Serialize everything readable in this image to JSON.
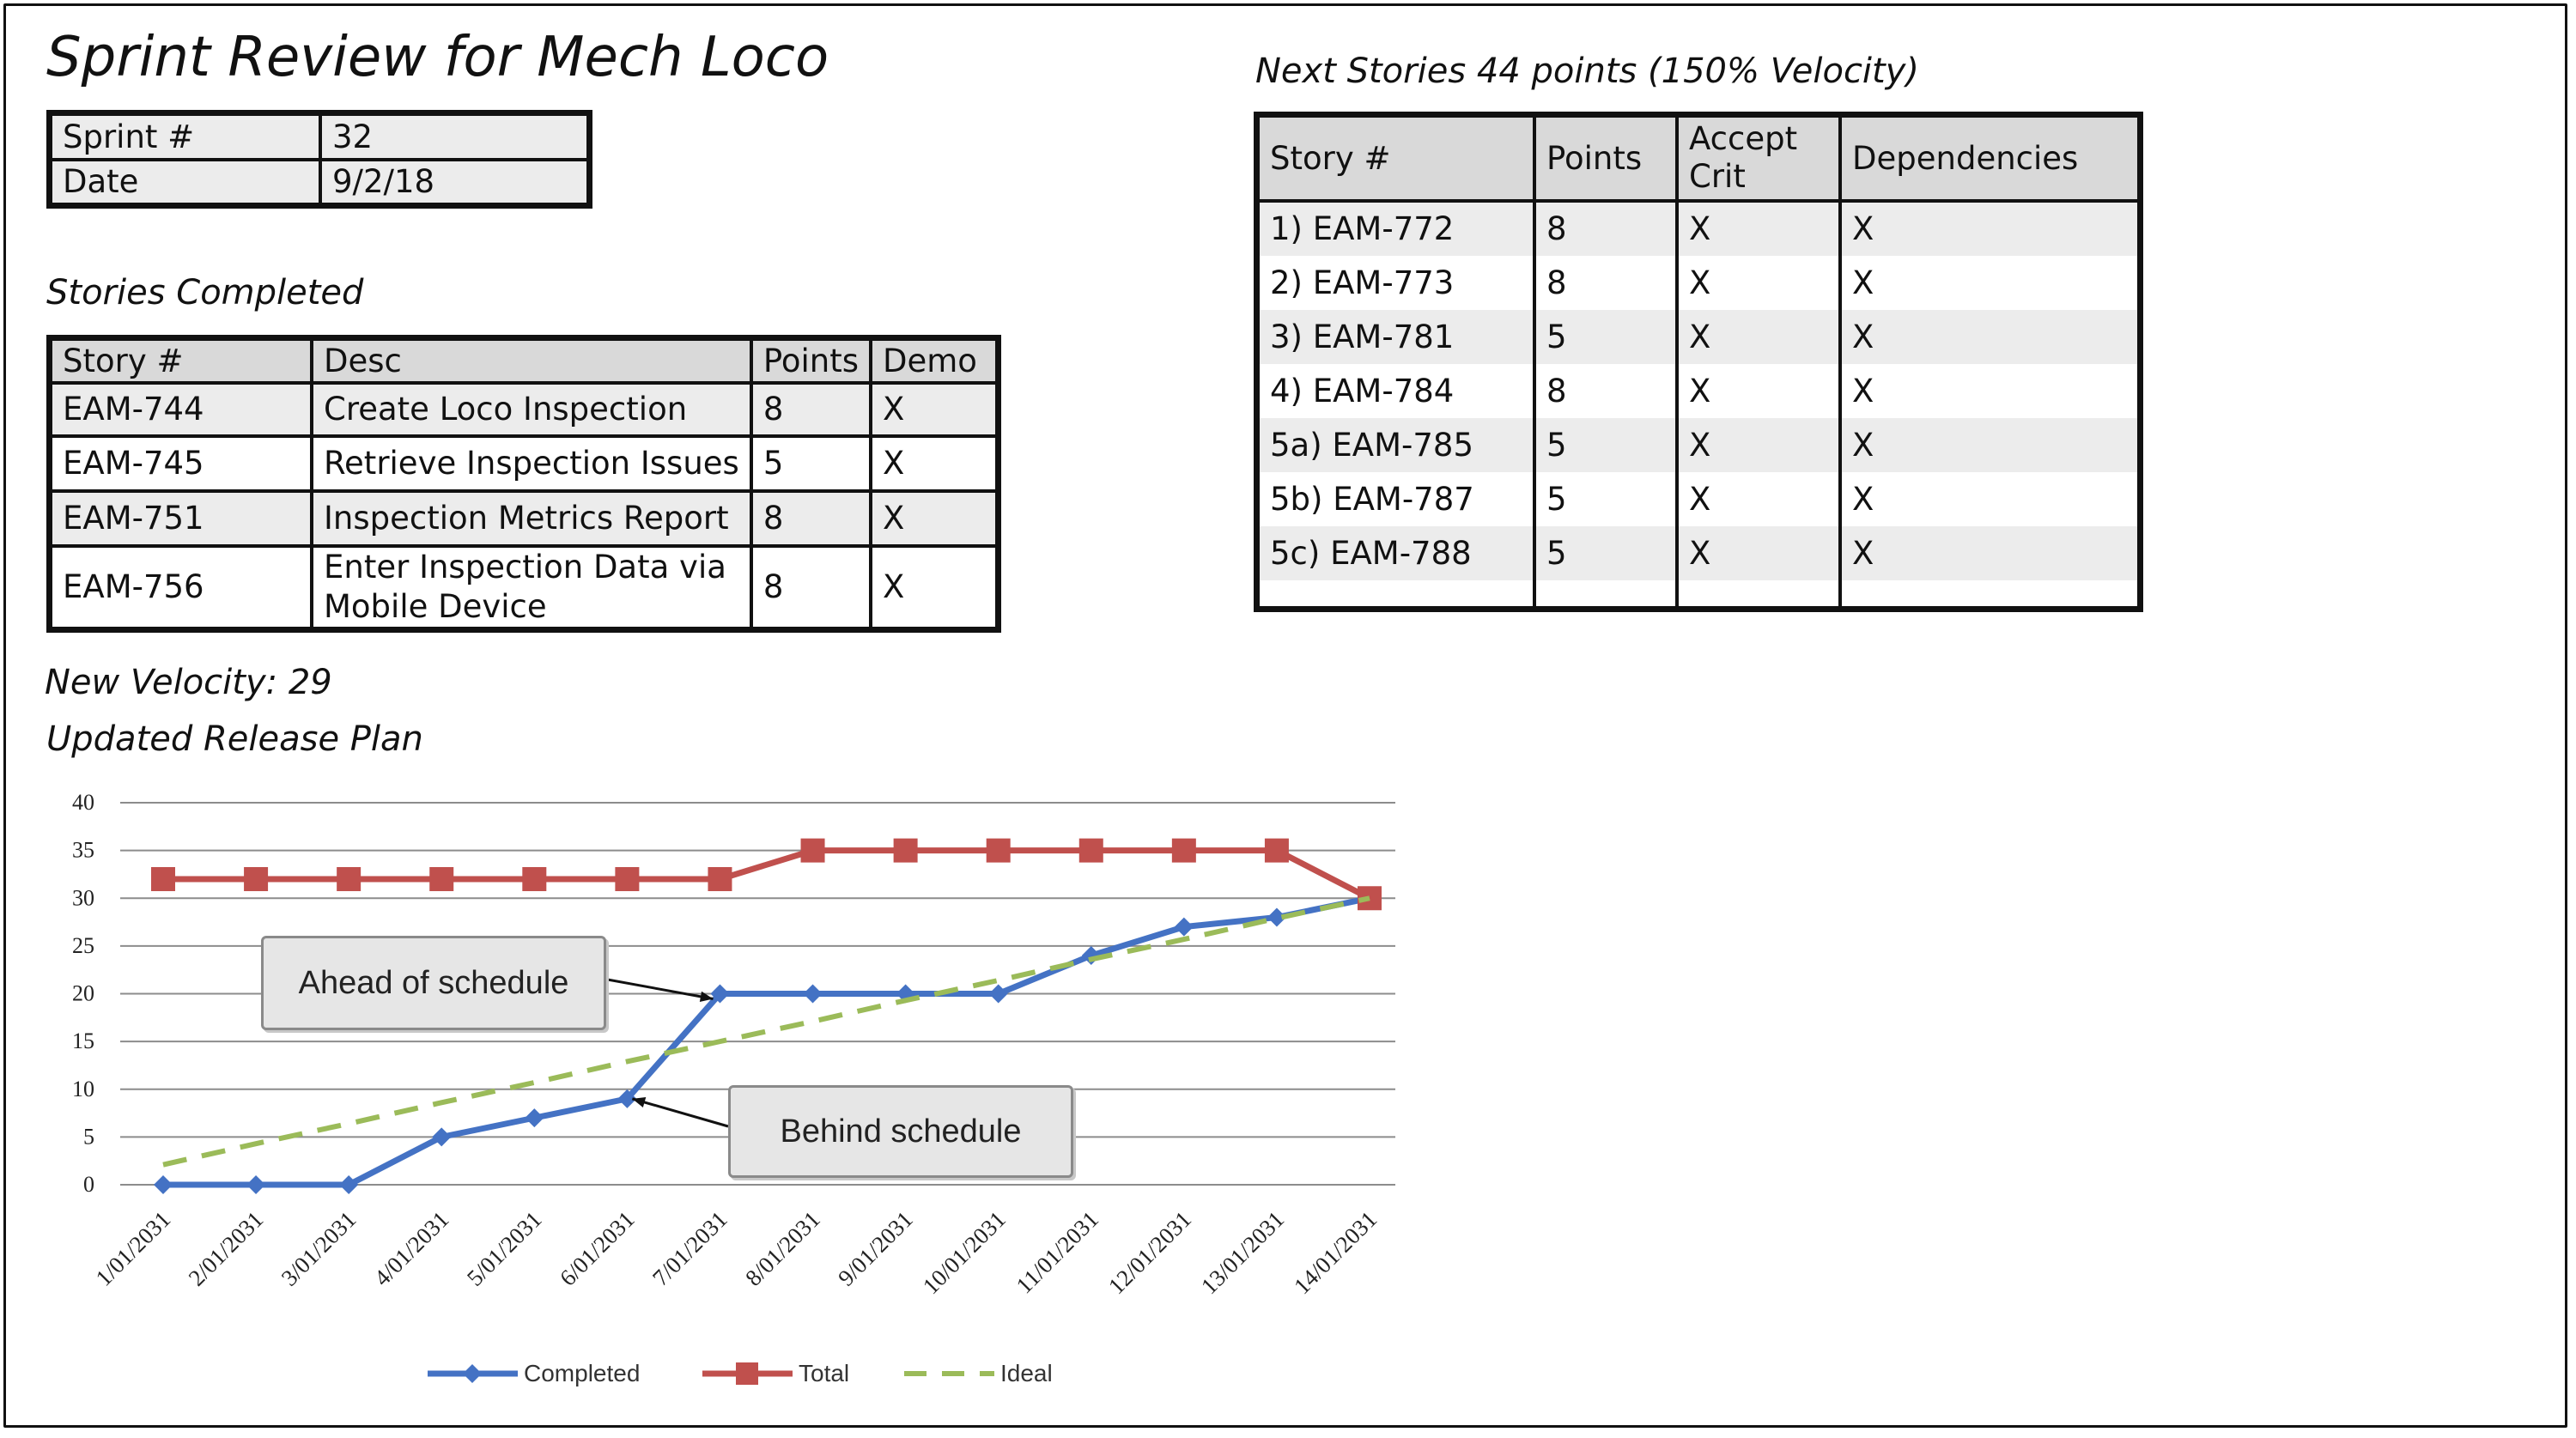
{
  "title": "Sprint Review for Mech Loco",
  "sprint_info": {
    "rows": [
      {
        "label": "Sprint #",
        "value": "32"
      },
      {
        "label": "Date",
        "value": "9/2/18"
      }
    ]
  },
  "completed": {
    "caption": "Stories Completed",
    "headers": [
      "Story #",
      "Desc",
      "Points",
      "Demo"
    ],
    "rows": [
      {
        "story": "EAM-744",
        "desc": "Create Loco Inspection",
        "points": "8",
        "demo": "X"
      },
      {
        "story": "EAM-745",
        "desc": "Retrieve Inspection Issues",
        "points": "5",
        "demo": "X"
      },
      {
        "story": "EAM-751",
        "desc": "Inspection Metrics Report",
        "points": "8",
        "demo": "X"
      },
      {
        "story": "EAM-756",
        "desc": "Enter Inspection Data via Mobile Device",
        "points": "8",
        "demo": "X"
      }
    ]
  },
  "velocity_text": "New Velocity: 29",
  "release_caption": "Updated Release Plan",
  "next": {
    "caption": "Next Stories 44 points (150% Velocity)",
    "headers": [
      "Story #",
      "Points",
      "Accept Crit",
      "Dependencies"
    ],
    "rows": [
      {
        "story": "1) EAM-772",
        "points": "8",
        "accept": "X",
        "deps": "X"
      },
      {
        "story": "2) EAM-773",
        "points": "8",
        "accept": "X",
        "deps": "X"
      },
      {
        "story": "3) EAM-781",
        "points": "5",
        "accept": "X",
        "deps": "X"
      },
      {
        "story": "4) EAM-784",
        "points": "8",
        "accept": "X",
        "deps": "X"
      },
      {
        "story": "5a) EAM-785",
        "points": "5",
        "accept": "X",
        "deps": "X"
      },
      {
        "story": "5b) EAM-787",
        "points": "5",
        "accept": "X",
        "deps": "X"
      },
      {
        "story": "5c) EAM-788",
        "points": "5",
        "accept": "X",
        "deps": "X"
      }
    ]
  },
  "callouts": {
    "ahead": "Ahead of schedule",
    "behind": "Behind schedule"
  },
  "chart_data": {
    "type": "line",
    "categories": [
      "1/01/2031",
      "2/01/2031",
      "3/01/2031",
      "4/01/2031",
      "5/01/2031",
      "6/01/2031",
      "7/01/2031",
      "8/01/2031",
      "9/01/2031",
      "10/01/2031",
      "11/01/2031",
      "12/01/2031",
      "13/01/2031",
      "14/01/2031"
    ],
    "series": [
      {
        "name": "Completed",
        "color": "#4472c4",
        "marker": "diamond",
        "values": [
          0,
          0,
          0,
          5,
          7,
          9,
          20,
          20,
          20,
          20,
          24,
          27,
          28,
          30
        ]
      },
      {
        "name": "Total",
        "color": "#c0504d",
        "marker": "square",
        "values": [
          32,
          32,
          32,
          32,
          32,
          32,
          32,
          35,
          35,
          35,
          35,
          35,
          35,
          30
        ]
      },
      {
        "name": "Ideal",
        "color": "#9bbb59",
        "dashed": true,
        "values": [
          2.1,
          4.3,
          6.4,
          8.6,
          10.7,
          12.9,
          15.0,
          17.1,
          19.3,
          21.4,
          23.6,
          25.7,
          27.9,
          30
        ]
      }
    ],
    "ylim": [
      0,
      40
    ],
    "yticks": [
      0,
      5,
      10,
      15,
      20,
      25,
      30,
      35,
      40
    ],
    "grid": true,
    "legend": "bottom"
  }
}
